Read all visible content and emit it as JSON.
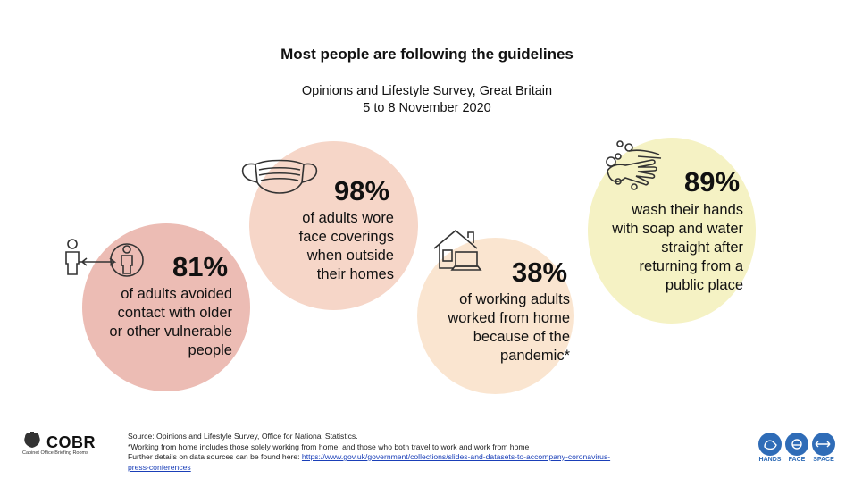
{
  "title": "Most people are following the guidelines",
  "subtitle_line1": "Opinions and Lifestyle Survey, Great Britain",
  "subtitle_line2": "5 to 8 November 2020",
  "chart_data": {
    "type": "table",
    "title": "Most people are following the guidelines",
    "subtitle": "Opinions and Lifestyle Survey, Great Britain, 5 to 8 November 2020",
    "unit": "%",
    "items": [
      {
        "value": 81,
        "label": "81%",
        "desc": [
          "of adults avoided",
          "contact with older",
          "or other vulnerable",
          "people"
        ],
        "color": "#ecbcb4"
      },
      {
        "value": 98,
        "label": "98%",
        "desc": [
          "of adults wore",
          "face coverings",
          "when outside",
          "their homes"
        ],
        "color": "#f6d6c8"
      },
      {
        "value": 38,
        "label": "38%",
        "desc": [
          "of working adults",
          "worked from home",
          "because of the",
          "pandemic*"
        ],
        "color": "#fae5d0"
      },
      {
        "value": 89,
        "label": "89%",
        "desc": [
          "wash their hands",
          "with soap and water",
          "straight after",
          "returning from a",
          "public place"
        ],
        "color": "#f5f2c4"
      }
    ]
  },
  "footer": {
    "source": "Source: Opinions and Lifestyle Survey, Office for National Statistics.",
    "note": "*Working from home includes those solely working from home, and those who both travel to work and work from home",
    "further": "Further details on data sources can be found here: ",
    "link_line1": "https://www.gov.uk/government/collections/slides-and-datasets-to-accompany-coronavirus-",
    "link_line2": "press-conferences"
  },
  "logo": {
    "name": "COBR",
    "sub": "Cabinet Office Briefing Rooms"
  },
  "hfs_labels": [
    "HANDS",
    "FACE",
    "SPACE"
  ]
}
